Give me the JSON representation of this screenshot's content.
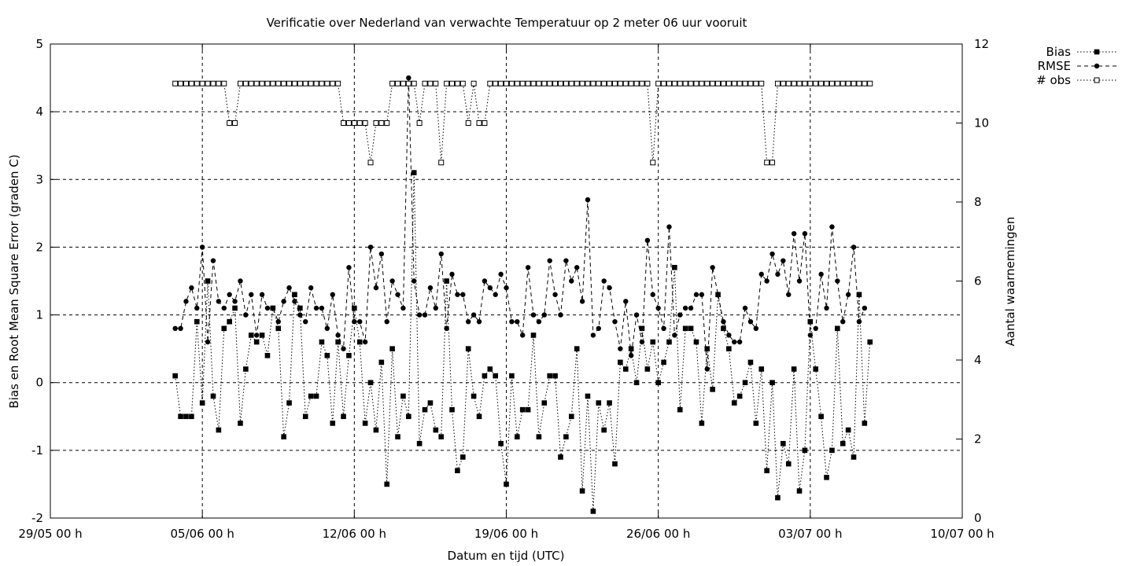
{
  "chart_data": {
    "type": "line",
    "title": "Verificatie over Nederland van verwachte Temperatuur op 2 meter 06 uur vooruit",
    "xlabel": "Datum en tijd (UTC)",
    "ylabel": "Bias en Root Mean Square Error (graden C)",
    "y2label": "Aantal waarnemingen",
    "xlim": [
      0,
      41
    ],
    "ylim": [
      -2,
      5
    ],
    "y2lim": [
      0,
      12
    ],
    "x_ticks": [
      0,
      7,
      14,
      21,
      28,
      35,
      42
    ],
    "x_tick_labels": [
      "29/05 00 h",
      "05/06 00 h",
      "12/06 00 h",
      "19/06 00 h",
      "26/06 00 h",
      "03/07 00 h",
      "10/07 00 h"
    ],
    "y_ticks": [
      -2,
      -1,
      0,
      1,
      2,
      3,
      4,
      5
    ],
    "y_tick_labels": [
      "-2",
      "-1",
      "0",
      "1",
      "2",
      "3",
      "4",
      "5"
    ],
    "y2_ticks": [
      0,
      2,
      4,
      6,
      8,
      10,
      12
    ],
    "y2_tick_labels": [
      "0",
      "2",
      "4",
      "6",
      "8",
      "10",
      "12"
    ],
    "grid": true,
    "legend_position": "outside-top-right",
    "series_x_start": 5.75,
    "series_x_step": 0.25,
    "series": [
      {
        "name": "Bias",
        "axis": "y",
        "marker": "filled-square",
        "line": "dotted",
        "values": [
          0.1,
          -0.5,
          -0.5,
          -0.5,
          0.9,
          -0.3,
          1.5,
          -0.2,
          -0.7,
          0.8,
          0.9,
          1.1,
          -0.6,
          0.2,
          0.7,
          0.6,
          0.7,
          0.4,
          1.1,
          0.8,
          -0.8,
          -0.3,
          1.3,
          1.1,
          -0.5,
          -0.2,
          -0.2,
          0.6,
          0.4,
          -0.6,
          0.6,
          -0.5,
          0.4,
          1.1,
          0.6,
          -0.6,
          0.0,
          -0.7,
          0.3,
          -1.5,
          0.5,
          -0.8,
          -0.2,
          -0.5,
          3.1,
          -0.9,
          -0.4,
          -0.3,
          -0.7,
          -0.8,
          1.5,
          -0.4,
          -1.3,
          -1.1,
          0.5,
          -0.2,
          -0.5,
          0.1,
          0.2,
          0.1,
          -0.9,
          -1.5,
          0.1,
          -0.8,
          -0.4,
          -0.4,
          0.7,
          -0.8,
          -0.3,
          0.1,
          0.1,
          -1.1,
          -0.8,
          -0.5,
          0.5,
          -1.6,
          -0.2,
          -1.9,
          -0.3,
          -0.7,
          -0.3,
          -1.2,
          0.3,
          0.2,
          0.5,
          0.0,
          0.8,
          0.2,
          0.6,
          0.0,
          0.3,
          0.6,
          1.7,
          -0.4,
          0.8,
          0.8,
          0.6,
          -0.6,
          0.5,
          -0.1,
          1.3,
          0.8,
          0.5,
          -0.3,
          -0.2,
          0.0,
          0.3,
          -0.6,
          0.2,
          -1.3,
          0.0,
          -1.7,
          -0.9,
          -1.2,
          0.2,
          -1.6,
          -1.0,
          0.9,
          0.2,
          -0.5,
          -1.4,
          -1.0,
          0.8,
          -0.9,
          -0.7,
          -1.1,
          1.3,
          -0.6,
          0.6
        ]
      },
      {
        "name": "RMSE",
        "axis": "y",
        "marker": "filled-circle",
        "line": "dashed",
        "values": [
          0.8,
          0.8,
          1.2,
          1.4,
          1.1,
          2.0,
          0.6,
          1.8,
          1.2,
          1.1,
          1.3,
          1.2,
          1.5,
          1.0,
          1.3,
          0.7,
          1.3,
          1.1,
          1.1,
          0.9,
          1.2,
          1.4,
          1.2,
          1.0,
          0.9,
          1.4,
          1.1,
          1.1,
          0.8,
          1.3,
          0.7,
          0.5,
          1.7,
          0.9,
          0.9,
          0.6,
          2.0,
          1.4,
          1.9,
          0.9,
          1.5,
          1.3,
          1.1,
          4.5,
          1.5,
          1.0,
          1.0,
          1.4,
          1.1,
          1.9,
          0.8,
          1.6,
          1.3,
          1.3,
          0.9,
          1.0,
          0.9,
          1.5,
          1.4,
          1.3,
          1.6,
          1.4,
          0.9,
          0.9,
          0.7,
          1.7,
          1.0,
          0.9,
          1.0,
          1.8,
          1.3,
          1.0,
          1.8,
          1.5,
          1.7,
          1.2,
          2.7,
          0.7,
          0.8,
          1.5,
          1.4,
          0.9,
          0.5,
          1.2,
          0.4,
          1.0,
          0.6,
          2.1,
          1.3,
          1.1,
          0.8,
          2.3,
          0.7,
          1.0,
          1.1,
          1.1,
          1.3,
          1.3,
          0.2,
          1.7,
          1.3,
          0.9,
          0.7,
          0.6,
          0.6,
          1.1,
          0.9,
          0.8,
          1.6,
          1.5,
          1.9,
          1.6,
          1.8,
          1.3,
          2.2,
          1.5,
          2.2,
          0.7,
          0.8,
          1.6,
          1.1,
          2.3,
          1.5,
          0.9,
          1.3,
          2.0,
          0.9,
          1.1
        ]
      },
      {
        "name": "# obs",
        "axis": "y2",
        "marker": "open-square",
        "line": "dotted",
        "values": [
          11,
          11,
          11,
          11,
          11,
          11,
          11,
          11,
          11,
          11,
          10,
          10,
          11,
          11,
          11,
          11,
          11,
          11,
          11,
          11,
          11,
          11,
          11,
          11,
          11,
          11,
          11,
          11,
          11,
          11,
          11,
          10,
          10,
          10,
          10,
          10,
          9,
          10,
          10,
          10,
          11,
          11,
          11,
          11,
          11,
          10,
          11,
          11,
          11,
          9,
          11,
          11,
          11,
          11,
          10,
          11,
          10,
          10,
          11,
          11,
          11,
          11,
          11,
          11,
          11,
          11,
          11,
          11,
          11,
          11,
          11,
          11,
          11,
          11,
          11,
          11,
          11,
          11,
          11,
          11,
          11,
          11,
          11,
          11,
          11,
          11,
          11,
          11,
          9,
          11,
          11,
          11,
          11,
          11,
          11,
          11,
          11,
          11,
          11,
          11,
          11,
          11,
          11,
          11,
          11,
          11,
          11,
          11,
          11,
          9,
          9,
          11,
          11,
          11,
          11,
          11,
          11,
          11,
          11,
          11,
          11,
          11,
          11,
          11,
          11,
          11,
          11,
          11,
          11
        ]
      }
    ]
  }
}
